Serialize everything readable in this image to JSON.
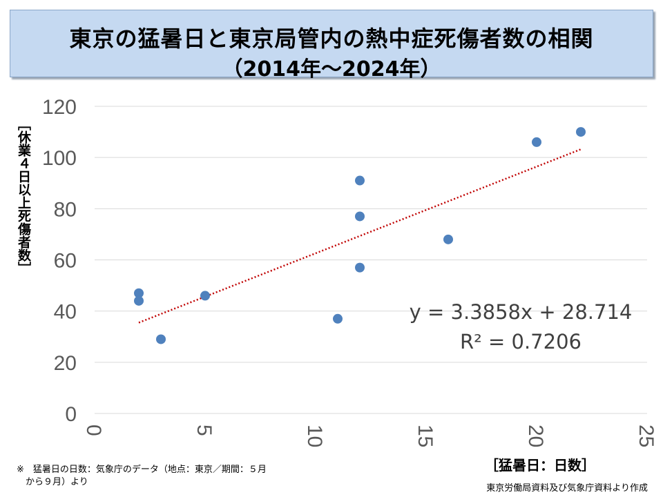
{
  "title": {
    "line1": "東京の猛暑日と東京局管内の熱中症死傷者数の相関",
    "line2": "（2014年～2024年）"
  },
  "chart_data": {
    "type": "scatter",
    "ylabel": "［休業４日以上死傷者数］",
    "xlabel": "［猛暑日：日数］",
    "xlim": [
      0,
      25
    ],
    "ylim": [
      0,
      120
    ],
    "xticks": [
      0,
      5,
      10,
      15,
      20,
      25
    ],
    "yticks": [
      0,
      20,
      40,
      60,
      80,
      100,
      120
    ],
    "grid": true,
    "points": [
      {
        "x": 2,
        "y": 47
      },
      {
        "x": 2,
        "y": 44
      },
      {
        "x": 3,
        "y": 29
      },
      {
        "x": 5,
        "y": 46
      },
      {
        "x": 11,
        "y": 37
      },
      {
        "x": 12,
        "y": 91
      },
      {
        "x": 12,
        "y": 77
      },
      {
        "x": 12,
        "y": 57
      },
      {
        "x": 16,
        "y": 68
      },
      {
        "x": 20,
        "y": 106
      },
      {
        "x": 22,
        "y": 110
      }
    ],
    "trendline": {
      "slope": 3.3858,
      "intercept": 28.714,
      "x_start": 2,
      "x_end": 22
    },
    "equation": "y = 3.3858x + 28.714",
    "r_squared": "R² = 0.7206",
    "colors": {
      "point": "#4f81bd",
      "trendline": "#c00000",
      "grid": "#d9d9d9",
      "tick_text": "#595959",
      "equation_text": "#404040"
    }
  },
  "note": {
    "line1": "※　猛暑日の日数：気象庁のデータ（地点：東京／期間：５月",
    "line2": "　から９月）より"
  },
  "source": "東京労働局資料及び気象庁資料より作成"
}
